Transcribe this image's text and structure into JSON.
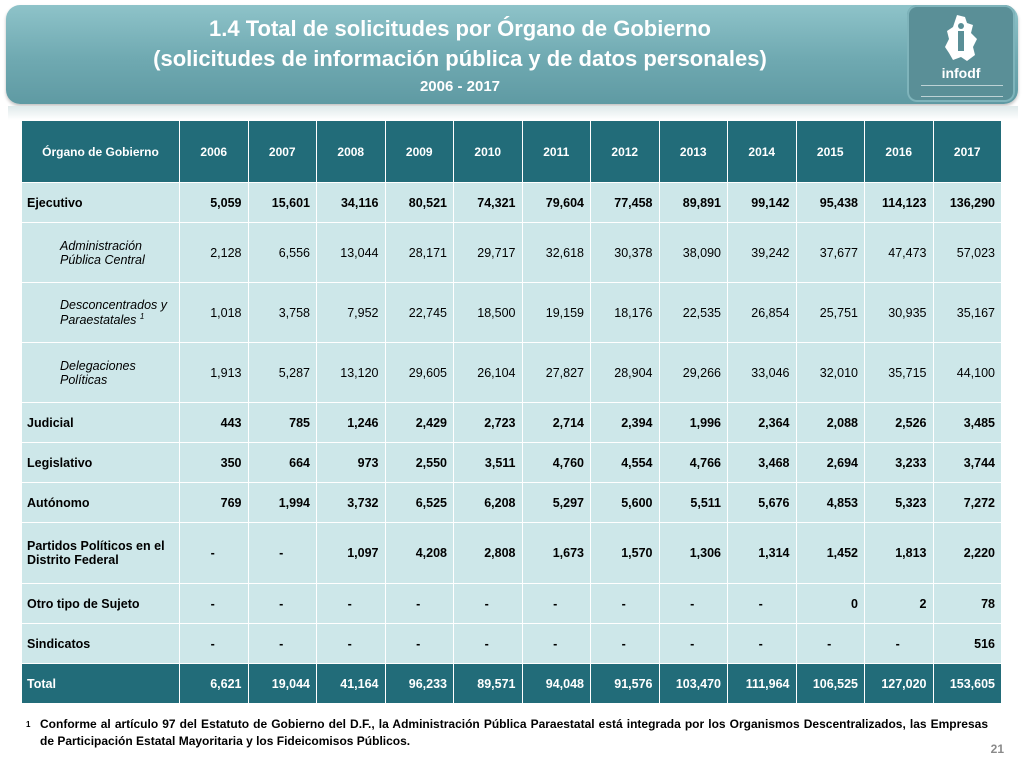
{
  "title": {
    "line1": "1.4 Total de solicitudes por Órgano de Gobierno",
    "line2": "(solicitudes de información pública y de datos personales)",
    "line3": "2006 - 2017"
  },
  "logo": {
    "brand": "infodf",
    "icon": "mexico-city-map-logo"
  },
  "table": {
    "header_label": "Órgano de Gobierno",
    "years": [
      "2006",
      "2007",
      "2008",
      "2009",
      "2010",
      "2011",
      "2012",
      "2013",
      "2014",
      "2015",
      "2016",
      "2017"
    ],
    "rows": [
      {
        "label": "Ejecutivo",
        "type": "main",
        "values": [
          "5,059",
          "15,601",
          "34,116",
          "80,521",
          "74,321",
          "79,604",
          "77,458",
          "89,891",
          "99,142",
          "95,438",
          "114,123",
          "136,290"
        ]
      },
      {
        "label": "Administración Pública Central",
        "type": "sub",
        "values": [
          "2,128",
          "6,556",
          "13,044",
          "28,171",
          "29,717",
          "32,618",
          "30,378",
          "38,090",
          "39,242",
          "37,677",
          "47,473",
          "57,023"
        ]
      },
      {
        "label": "Desconcentrados y Paraestatales",
        "sup": "1",
        "type": "sub",
        "values": [
          "1,018",
          "3,758",
          "7,952",
          "22,745",
          "18,500",
          "19,159",
          "18,176",
          "22,535",
          "26,854",
          "25,751",
          "30,935",
          "35,167"
        ]
      },
      {
        "label": "Delegaciones Políticas",
        "type": "sub",
        "values": [
          "1,913",
          "5,287",
          "13,120",
          "29,605",
          "26,104",
          "27,827",
          "28,904",
          "29,266",
          "33,046",
          "32,010",
          "35,715",
          "44,100"
        ]
      },
      {
        "label": "Judicial",
        "type": "main",
        "values": [
          "443",
          "785",
          "1,246",
          "2,429",
          "2,723",
          "2,714",
          "2,394",
          "1,996",
          "2,364",
          "2,088",
          "2,526",
          "3,485"
        ]
      },
      {
        "label": "Legislativo",
        "type": "main",
        "values": [
          "350",
          "664",
          "973",
          "2,550",
          "3,511",
          "4,760",
          "4,554",
          "4,766",
          "3,468",
          "2,694",
          "3,233",
          "3,744"
        ]
      },
      {
        "label": "Autónomo",
        "type": "main",
        "values": [
          "769",
          "1,994",
          "3,732",
          "6,525",
          "6,208",
          "5,297",
          "5,600",
          "5,511",
          "5,676",
          "4,853",
          "5,323",
          "7,272"
        ]
      },
      {
        "label": "Partidos Políticos en el Distrito Federal",
        "type": "main",
        "values": [
          "-",
          "-",
          "1,097",
          "4,208",
          "2,808",
          "1,673",
          "1,570",
          "1,306",
          "1,314",
          "1,452",
          "1,813",
          "2,220"
        ]
      },
      {
        "label": "Otro tipo de Sujeto",
        "type": "main",
        "values": [
          "-",
          "-",
          "-",
          "-",
          "-",
          "-",
          "-",
          "-",
          "-",
          "0",
          "2",
          "78"
        ]
      },
      {
        "label": "Sindicatos",
        "type": "main",
        "values": [
          "-",
          "-",
          "-",
          "-",
          "-",
          "-",
          "-",
          "-",
          "-",
          "-",
          "-",
          "516"
        ]
      },
      {
        "label": "Total",
        "type": "total",
        "values": [
          "6,621",
          "19,044",
          "41,164",
          "96,233",
          "89,571",
          "94,048",
          "91,576",
          "103,470",
          "111,964",
          "106,525",
          "127,020",
          "153,605"
        ]
      }
    ]
  },
  "footnote": {
    "marker": "1",
    "text": "Conforme al artículo 97 del Estatuto de Gobierno del D.F., la Administración Pública Paraestatal está integrada por los Organismos Descentralizados, las Empresas de Participación Estatal Mayoritaria y los Fideicomisos Públicos."
  },
  "page_number": "21",
  "colors": {
    "banner": "#6fa9b1",
    "header": "#226c79",
    "cell": "#cde7e9"
  }
}
